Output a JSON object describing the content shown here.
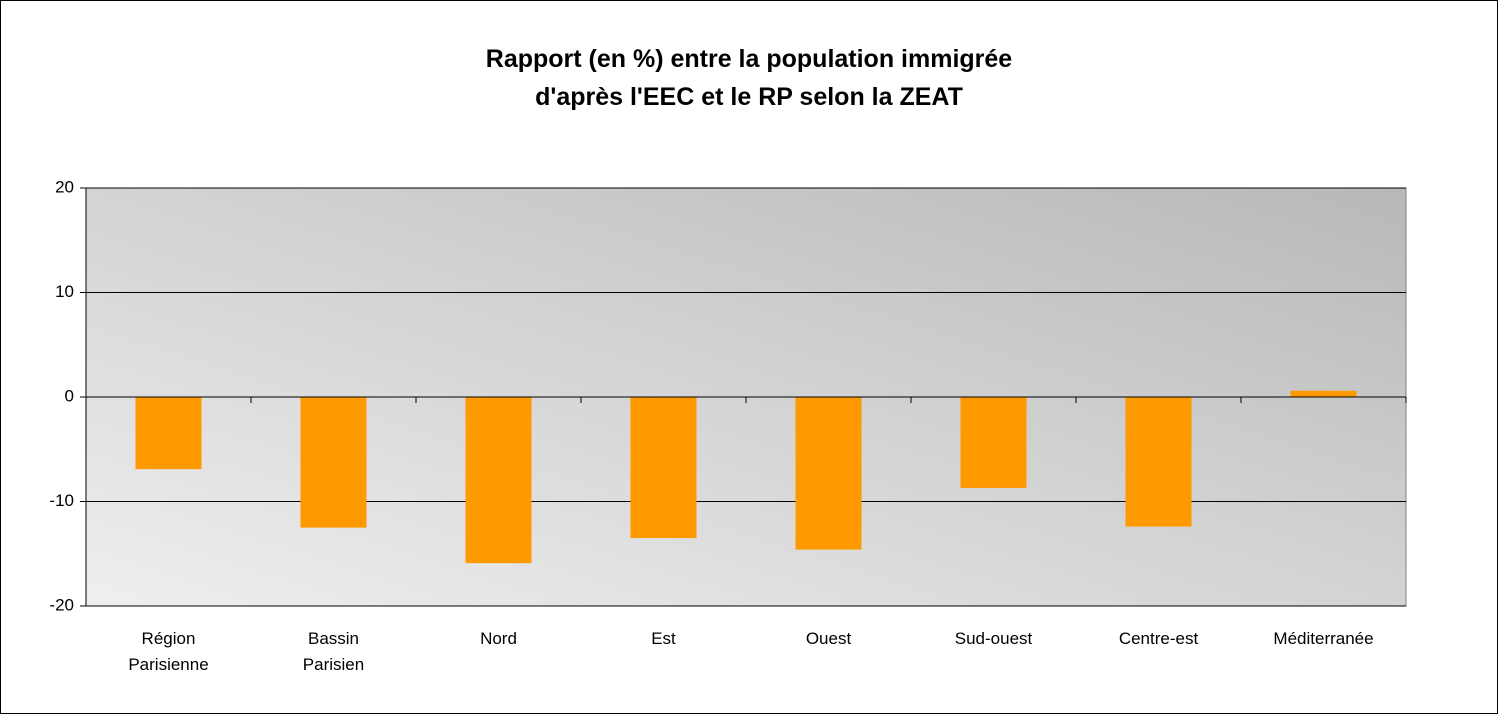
{
  "chart_data": {
    "type": "bar",
    "title": "Rapport (en %) entre la population immigrée d'après l'EEC et le RP selon la ZEAT",
    "categories": [
      "Région Parisienne",
      "Bassin Parisien",
      "Nord",
      "Est",
      "Ouest",
      "Sud-ouest",
      "Centre-est",
      "Méditerranée"
    ],
    "values": [
      -6.9,
      -12.5,
      -15.9,
      -13.5,
      -14.6,
      -8.7,
      -12.4,
      0.6
    ],
    "color": "#ff9900",
    "ylim": [
      -20,
      20
    ],
    "yticks": [
      -20,
      -10,
      0,
      10,
      20
    ],
    "grid": true
  }
}
